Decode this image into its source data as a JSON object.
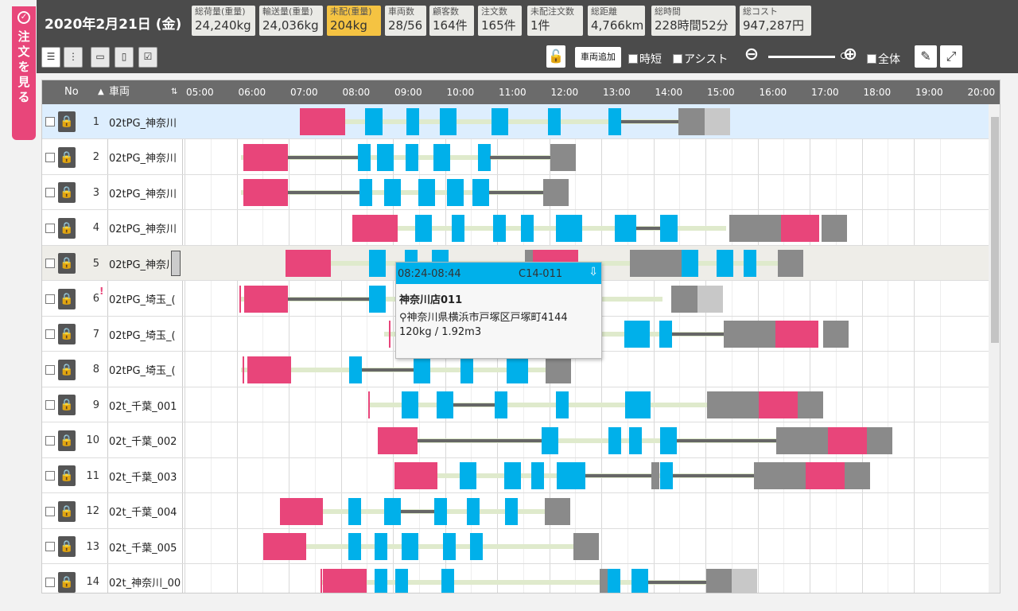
{
  "sidetab": {
    "label": "注文を見る",
    "icon": "check-circle-icon"
  },
  "header": {
    "date": "2020年2月21日 (金)"
  },
  "stats": [
    {
      "title": "総荷量(重量)",
      "value": "24,240kg",
      "highlight": false
    },
    {
      "title": "輸送量(重量)",
      "value": "24,036kg",
      "highlight": false
    },
    {
      "title": "未配(重量)",
      "value": "204kg",
      "highlight": true
    },
    {
      "title": "車両数",
      "value": "28/56",
      "highlight": false
    },
    {
      "title": "顧客数",
      "value": "164件",
      "highlight": false
    },
    {
      "title": "注文数",
      "value": "165件",
      "highlight": false
    },
    {
      "title": "未配注文数",
      "value": "1件",
      "highlight": false
    },
    {
      "title": "総距離",
      "value": "4,766km",
      "highlight": false
    },
    {
      "title": "総時間",
      "value": "228時間52分",
      "highlight": false
    },
    {
      "title": "総コスト",
      "value": "947,287円",
      "highlight": false
    }
  ],
  "toolbar": {
    "add_vehicle": "車両追加",
    "opt_time": "時短",
    "opt_assist": "アシスト",
    "opt_all": "全体",
    "zoom_out": "zoom-out-icon",
    "zoom_in": "zoom-in-icon",
    "wrench": "wrench-icon",
    "expand": "expand-icon"
  },
  "grid": {
    "col_no": "No",
    "col_vehicle": "車両",
    "times": [
      "05:00",
      "06:00",
      "07:00",
      "08:00",
      "09:00",
      "10:00",
      "11:00",
      "12:00",
      "13:00",
      "14:00",
      "15:00",
      "16:00",
      "17:00",
      "18:00",
      "19:00",
      "20:00"
    ],
    "rows": [
      {
        "no": "1",
        "vehicle": "02tPG_神奈川"
      },
      {
        "no": "2",
        "vehicle": "02tPG_神奈川"
      },
      {
        "no": "3",
        "vehicle": "02tPG_神奈川"
      },
      {
        "no": "4",
        "vehicle": "02tPG_神奈川"
      },
      {
        "no": "5",
        "vehicle": "02tPG_神奈川"
      },
      {
        "no": "6",
        "vehicle": "02tPG_埼玉_("
      },
      {
        "no": "7",
        "vehicle": "02tPG_埼玉_("
      },
      {
        "no": "8",
        "vehicle": "02tPG_埼玉_("
      },
      {
        "no": "9",
        "vehicle": "02t_千葉_001"
      },
      {
        "no": "10",
        "vehicle": "02t_千葉_002"
      },
      {
        "no": "11",
        "vehicle": "02t_千葉_003"
      },
      {
        "no": "12",
        "vehicle": "02t_千葉_004"
      },
      {
        "no": "13",
        "vehicle": "02t_千葉_005"
      },
      {
        "no": "14",
        "vehicle": "02t_神奈川_00"
      }
    ]
  },
  "popup": {
    "time": "08:24-08:44",
    "order_id": "C14-011",
    "name": "神奈川店011",
    "address": "神奈川県横浜市戸塚区戸塚町4144",
    "weight": "120kg / 1.92m3"
  }
}
